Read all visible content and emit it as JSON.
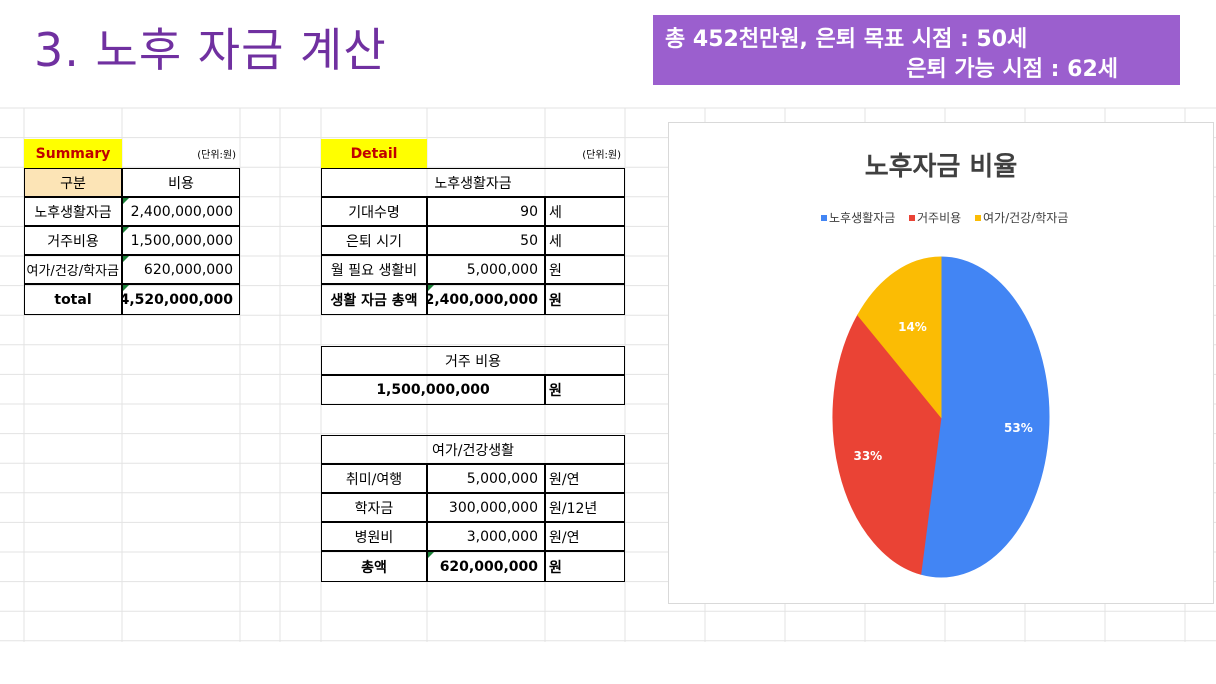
{
  "slide": {
    "title": "3. 노후 자금 계산",
    "banner_line1": "총 452천만원, 은퇴 목표 시점  : 50세",
    "banner_line2": "은퇴 가능 시점 : 62세"
  },
  "summary": {
    "header": "Summary",
    "unit": "(단위:원)",
    "col1": "구분",
    "col2": "비용",
    "rows": [
      {
        "label": "노후생활자금",
        "value": "2,400,000,000"
      },
      {
        "label": "거주비용",
        "value": "1,500,000,000"
      },
      {
        "label": "여가/건강/학자금",
        "value": "620,000,000"
      }
    ],
    "total_label": "total",
    "total_value": "4,520,000,000"
  },
  "detail": {
    "header": "Detail",
    "unit": "(단위:원)",
    "living": {
      "title": "노후생활자금",
      "rows": [
        {
          "label": "기대수명",
          "value": "90",
          "unit": "세"
        },
        {
          "label": "은퇴 시기",
          "value": "50",
          "unit": "세"
        },
        {
          "label": "월 필요 생활비",
          "value": "5,000,000",
          "unit": "원"
        }
      ],
      "total_label": "생활 자금 총액",
      "total_value": "2,400,000,000",
      "total_unit": "원"
    },
    "housing": {
      "title": "거주 비용",
      "value": "1,500,000,000",
      "unit": "원"
    },
    "leisure": {
      "title": "여가/건강생활",
      "rows": [
        {
          "label": "취미/여행",
          "value": "5,000,000",
          "unit": "원/연"
        },
        {
          "label": "학자금",
          "value": "300,000,000",
          "unit": "원/12년"
        },
        {
          "label": "병원비",
          "value": "3,000,000",
          "unit": "원/연"
        }
      ],
      "total_label": "총액",
      "total_value": "620,000,000",
      "total_unit": "원"
    }
  },
  "chart_data": {
    "type": "pie",
    "title": "노후자금 비율",
    "categories": [
      "노후생활자금",
      "거주비용",
      "여가/건강/학자금"
    ],
    "values": [
      53,
      33,
      14
    ],
    "labels": [
      "53%",
      "33%",
      "14%"
    ],
    "colors": [
      "#4285f4",
      "#ea4335",
      "#fbbc04"
    ],
    "legend": "top"
  }
}
